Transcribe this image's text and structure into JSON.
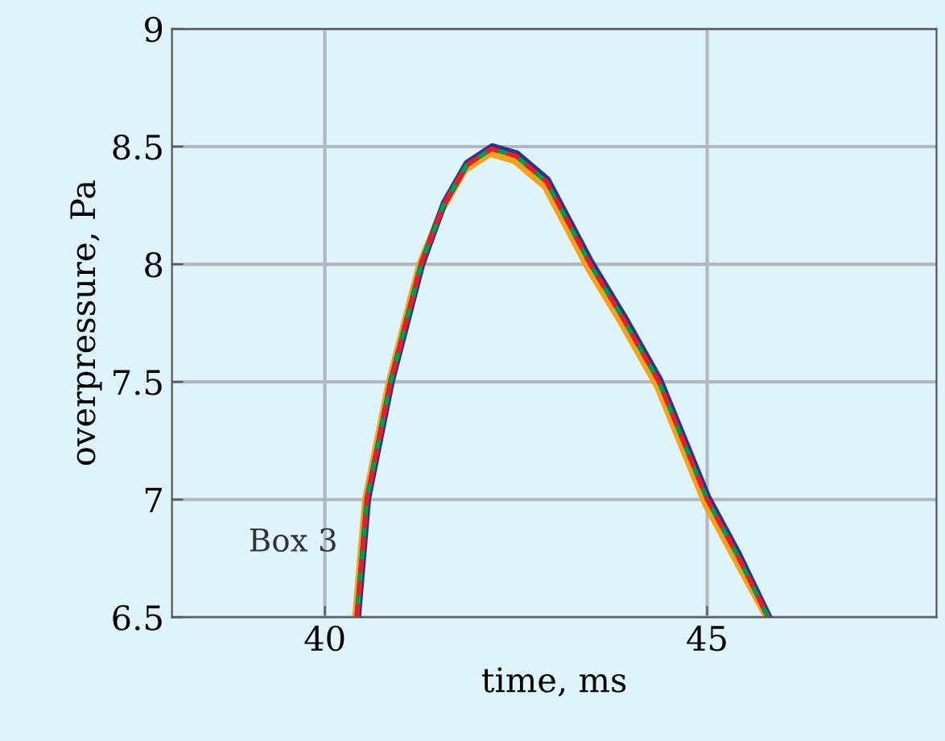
{
  "chart_data": {
    "type": "line",
    "xlabel": "time, ms",
    "ylabel": "overpressure, Pa",
    "annotations": [
      "Box 3"
    ],
    "xlim": [
      38,
      48
    ],
    "xticks": [
      40,
      45
    ],
    "ylim": [
      6.5,
      9
    ],
    "yticks": [
      6.5,
      7,
      7.5,
      8,
      8.5,
      9
    ],
    "grid": true,
    "marker": "none",
    "series": [
      {
        "color": "#f7a21b",
        "line_style": "solid",
        "x": [
          40.4,
          40.53,
          40.84,
          41.24,
          41.53,
          41.83,
          42.16,
          42.48,
          42.88,
          43.45,
          43.88,
          44.35,
          44.98,
          45.38,
          45.78
        ],
        "values": [
          6.5,
          7.0,
          7.5,
          8.0,
          8.23,
          8.4,
          8.47,
          8.44,
          8.33,
          7.98,
          7.75,
          7.48,
          6.98,
          6.74,
          6.5
        ]
      },
      {
        "color": "#2e3192",
        "line_style": "solid",
        "x": [
          40.43,
          40.56,
          40.87,
          41.27,
          41.56,
          41.86,
          42.19,
          42.51,
          42.91,
          43.48,
          43.91,
          44.38,
          45.01,
          45.41,
          45.81
        ],
        "values": [
          6.5,
          7.0,
          7.5,
          8.0,
          8.26,
          8.43,
          8.5,
          8.47,
          8.36,
          8.01,
          7.78,
          7.51,
          7.01,
          6.77,
          6.5
        ]
      },
      {
        "color": "#009e49",
        "line_style": "solid",
        "x": [
          40.42,
          40.55,
          40.86,
          41.26,
          41.55,
          41.85,
          42.18,
          42.5,
          42.9,
          43.47,
          43.9,
          44.37,
          45.0,
          45.4,
          45.8
        ],
        "values": [
          6.5,
          7.0,
          7.5,
          8.0,
          8.25,
          8.42,
          8.49,
          8.46,
          8.35,
          8.0,
          7.77,
          7.5,
          7.0,
          6.76,
          6.5
        ]
      },
      {
        "color": "#ed1c24",
        "line_style": "dashed",
        "x": [
          40.42,
          40.55,
          40.86,
          41.26,
          41.55,
          41.85,
          42.18,
          42.5,
          42.9,
          43.47,
          43.9,
          44.37,
          45.0,
          45.4,
          45.8
        ],
        "values": [
          6.5,
          7.0,
          7.5,
          8.0,
          8.25,
          8.42,
          8.49,
          8.46,
          8.35,
          8.0,
          7.77,
          7.5,
          7.0,
          6.76,
          6.5
        ]
      }
    ]
  }
}
